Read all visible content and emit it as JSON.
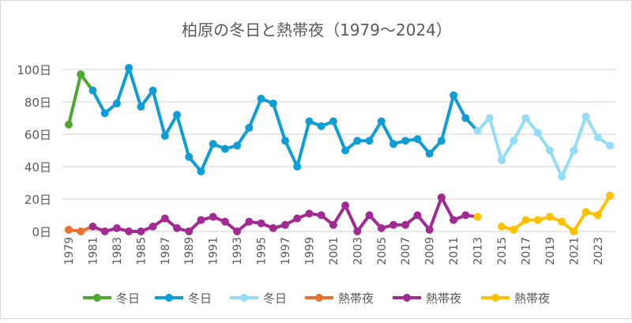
{
  "chart_data": {
    "type": "line",
    "title": "柏原の冬日と熱帯夜（1979～2024）",
    "y_ticks": [
      "0日",
      "20日",
      "40日",
      "60日",
      "80日",
      "100日"
    ],
    "ylim": [
      0,
      100
    ],
    "xlim": [
      1979,
      2024
    ],
    "x_tick_labels": [
      "1979",
      "1981",
      "1983",
      "1985",
      "1987",
      "1989",
      "1991",
      "1993",
      "1995",
      "1997",
      "1999",
      "2001",
      "2003",
      "2005",
      "2007",
      "2009",
      "2011",
      "2013",
      "2015",
      "2017",
      "2019",
      "2021",
      "2023"
    ],
    "grid": true,
    "legend_position": "bottom",
    "series": [
      {
        "name": "冬日",
        "color": "#4ea72e",
        "x": [
          1979,
          1980
        ],
        "values": [
          66,
          97
        ]
      },
      {
        "name": "冬日",
        "color": "#0e9ed5",
        "x": [
          1981,
          1982,
          1983,
          1984,
          1985,
          1986,
          1987,
          1988,
          1989,
          1990,
          1991,
          1992,
          1993,
          1994,
          1995,
          1996,
          1997,
          1998,
          1999,
          2000,
          2001,
          2002,
          2003,
          2004,
          2005,
          2006,
          2007,
          2008,
          2009,
          2010,
          2011,
          2012
        ],
        "values": [
          87,
          73,
          79,
          101,
          77,
          87,
          59,
          72,
          46,
          37,
          54,
          51,
          53,
          64,
          82,
          79,
          56,
          40,
          68,
          65,
          68,
          50,
          56,
          56,
          68,
          54,
          56,
          57,
          48,
          56,
          84,
          70
        ]
      },
      {
        "name": "冬日",
        "color": "#94dcf8",
        "x": [
          2013,
          2014,
          2015,
          2016,
          2017,
          2018,
          2019,
          2020,
          2021,
          2022,
          2023,
          2024
        ],
        "values": [
          62,
          70,
          44,
          56,
          70,
          61,
          50,
          34,
          50,
          71,
          58,
          53
        ]
      },
      {
        "name": "熱帯夜",
        "color": "#e97132",
        "x": [
          1979,
          1980
        ],
        "values": [
          1,
          0
        ]
      },
      {
        "name": "熱帯夜",
        "color": "#a02b93",
        "x": [
          1981,
          1982,
          1983,
          1984,
          1985,
          1986,
          1987,
          1988,
          1989,
          1990,
          1991,
          1992,
          1993,
          1994,
          1995,
          1996,
          1997,
          1998,
          1999,
          2000,
          2001,
          2002,
          2003,
          2004,
          2005,
          2006,
          2007,
          2008,
          2009,
          2010,
          2011,
          2012
        ],
        "values": [
          3,
          0,
          2,
          0,
          0,
          3,
          8,
          2,
          0,
          7,
          9,
          6,
          0,
          6,
          5,
          2,
          4,
          8,
          11,
          10,
          4,
          16,
          0,
          10,
          2,
          4,
          4,
          10,
          1,
          21,
          7,
          10
        ]
      },
      {
        "name": "熱帯夜",
        "color": "#ffc000",
        "x": [
          2013,
          2015,
          2016,
          2017,
          2018,
          2019,
          2020,
          2021,
          2022,
          2023,
          2024
        ],
        "values": [
          9,
          3,
          1,
          7,
          7,
          9,
          6,
          0,
          12,
          10,
          22
        ]
      }
    ]
  }
}
